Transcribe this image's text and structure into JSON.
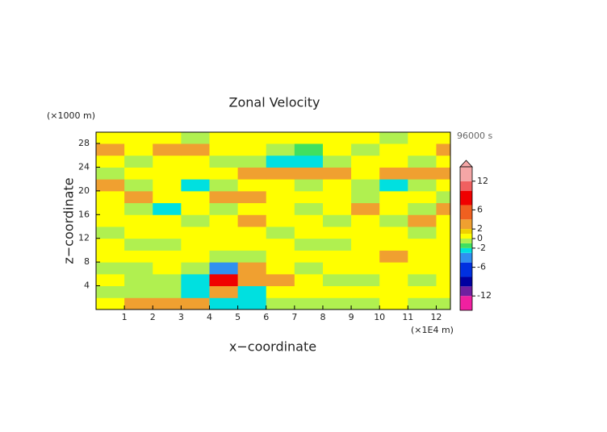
{
  "chart_data": {
    "type": "heatmap",
    "title": "Zonal Velocity",
    "y_unit": "(×1000 m)",
    "x_unit": "(×1E4 m)",
    "time_label": "96000 s",
    "xlabel": "x−coordinate",
    "ylabel": "z−coordinate",
    "x": [
      0.5,
      1.5,
      2.5,
      3.5,
      4.5,
      5.5,
      6.5,
      7.5,
      8.5,
      9.5,
      10.5,
      11.5,
      12.5
    ],
    "y": [
      1,
      3,
      5,
      7,
      9,
      11,
      13,
      15,
      17,
      19,
      21,
      23,
      25,
      27,
      29
    ],
    "z": [
      [
        0.5,
        3,
        3,
        3,
        -2.5,
        -2.5,
        -0.5,
        -0.5,
        -0.5,
        -0.5,
        0.5,
        -0.5,
        -0.5
      ],
      [
        -0.5,
        -0.5,
        -0.5,
        -2.5,
        3,
        -2.5,
        0.5,
        0.5,
        0.5,
        0.5,
        0.5,
        0.5,
        0.5
      ],
      [
        0.5,
        -0.5,
        -0.5,
        -3,
        8,
        3,
        3,
        0.5,
        -0.5,
        -0.5,
        0.5,
        -0.5,
        0.5
      ],
      [
        -0.5,
        -0.5,
        0.5,
        -0.5,
        -5,
        3,
        0.5,
        -0.5,
        0.5,
        0.5,
        0.5,
        0.5,
        0.5
      ],
      [
        0.5,
        0.5,
        0.5,
        0.5,
        -0.5,
        -0.5,
        0.5,
        0.5,
        0.5,
        0.5,
        3,
        0.5,
        0.5
      ],
      [
        0.5,
        -0.5,
        -0.5,
        0.5,
        0.5,
        0.5,
        0.5,
        -0.5,
        -0.5,
        0.5,
        0.5,
        0.5,
        0.5
      ],
      [
        -0.5,
        0.5,
        0.5,
        0.5,
        0.5,
        0.5,
        -0.5,
        0.5,
        0.5,
        0.5,
        0.5,
        -0.5,
        0.5
      ],
      [
        0.5,
        0.5,
        0.5,
        -0.5,
        0.5,
        3,
        0.5,
        0.5,
        -0.5,
        0.5,
        -0.5,
        3,
        0.5
      ],
      [
        0.5,
        -0.5,
        -2.5,
        0.5,
        -0.5,
        0.5,
        0.5,
        -0.5,
        0.5,
        3,
        0.5,
        -0.5,
        3
      ],
      [
        0.5,
        3,
        0.5,
        0.5,
        3,
        3,
        0.5,
        0.5,
        0.5,
        -0.5,
        0.5,
        0.5,
        -0.5
      ],
      [
        3,
        -0.5,
        0.5,
        -2.5,
        -0.5,
        0.5,
        0.5,
        -0.5,
        0.5,
        -0.5,
        -2.5,
        -0.5,
        0.5
      ],
      [
        -0.5,
        0.5,
        0.5,
        0.5,
        0.5,
        3,
        3,
        3,
        3,
        0.5,
        2,
        3,
        3
      ],
      [
        0.5,
        -0.5,
        0.5,
        0.5,
        -0.5,
        -0.5,
        -2.5,
        -2.5,
        -0.5,
        0.5,
        0.5,
        -0.5,
        0.5
      ],
      [
        2,
        0.5,
        3,
        3,
        0.5,
        0.5,
        -0.5,
        -1.5,
        0.5,
        -0.5,
        0.5,
        0.5,
        2
      ],
      [
        0.5,
        0.5,
        0.5,
        -0.5,
        0.5,
        0.5,
        0.5,
        0.5,
        0.5,
        0.5,
        -0.5,
        0.5,
        0.5
      ]
    ],
    "xlim": [
      0,
      12.5
    ],
    "ylim": [
      0,
      29.9
    ],
    "xticks": [
      1,
      2,
      3,
      4,
      5,
      6,
      7,
      8,
      9,
      10,
      11,
      12
    ],
    "yticks": [
      4,
      8,
      12,
      16,
      20,
      24,
      28
    ],
    "levels": [
      -15,
      -12,
      -10,
      -8,
      -5,
      -3,
      -2,
      -1,
      0,
      1,
      2,
      4,
      7,
      10,
      12,
      15
    ],
    "colors": [
      "#f020a0",
      "#7020a0",
      "#0000a0",
      "#0030e0",
      "#3090f0",
      "#00e0e0",
      "#40e060",
      "#b0f050",
      "#ffff00",
      "#f0d000",
      "#f0a030",
      "#f06020",
      "#f00000",
      "#f06060",
      "#f4a6a6"
    ],
    "colorbar_ticks": [
      12,
      6,
      2,
      0,
      -2,
      -6,
      -12
    ]
  }
}
